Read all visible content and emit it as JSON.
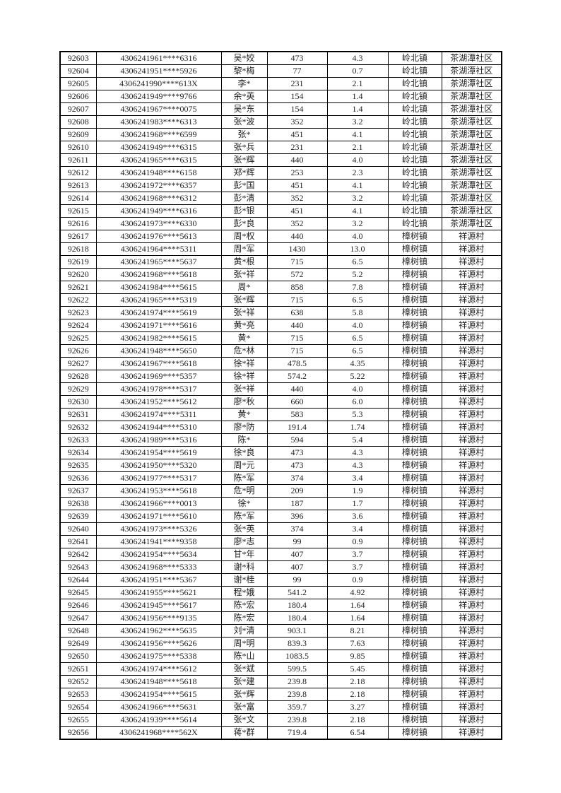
{
  "page": {
    "background_color": "#ffffff",
    "text_color": "#1f1f1f",
    "border_color": "#000000"
  },
  "table": {
    "rows": [
      [
        "92603",
        "4306241961****6316",
        "吴*姣",
        "473",
        "4.3",
        "岭北镇",
        "茶湖潭社区"
      ],
      [
        "92604",
        "4306241951****5926",
        "黎*梅",
        "77",
        "0.7",
        "岭北镇",
        "茶湖潭社区"
      ],
      [
        "92605",
        "4306241990****613X",
        "李*",
        "231",
        "2.1",
        "岭北镇",
        "茶湖潭社区"
      ],
      [
        "92606",
        "4306241949****9766",
        "余*英",
        "154",
        "1.4",
        "岭北镇",
        "茶湖潭社区"
      ],
      [
        "92607",
        "4306241967****0075",
        "吴*东",
        "154",
        "1.4",
        "岭北镇",
        "茶湖潭社区"
      ],
      [
        "92608",
        "4306241983****6313",
        "张*波",
        "352",
        "3.2",
        "岭北镇",
        "茶湖潭社区"
      ],
      [
        "92609",
        "4306241968****6599",
        "张*",
        "451",
        "4.1",
        "岭北镇",
        "茶湖潭社区"
      ],
      [
        "92610",
        "4306241949****6315",
        "张*兵",
        "231",
        "2.1",
        "岭北镇",
        "茶湖潭社区"
      ],
      [
        "92611",
        "4306241965****6315",
        "张*辉",
        "440",
        "4.0",
        "岭北镇",
        "茶湖潭社区"
      ],
      [
        "92612",
        "4306241948****6158",
        "郑*辉",
        "253",
        "2.3",
        "岭北镇",
        "茶湖潭社区"
      ],
      [
        "92613",
        "4306241972****6357",
        "彭*国",
        "451",
        "4.1",
        "岭北镇",
        "茶湖潭社区"
      ],
      [
        "92614",
        "4306241968****6312",
        "彭*清",
        "352",
        "3.2",
        "岭北镇",
        "茶湖潭社区"
      ],
      [
        "92615",
        "4306241949****6316",
        "彭*银",
        "451",
        "4.1",
        "岭北镇",
        "茶湖潭社区"
      ],
      [
        "92616",
        "4306241973****6330",
        "彭*良",
        "352",
        "3.2",
        "岭北镇",
        "茶湖潭社区"
      ],
      [
        "92617",
        "4306241976****5613",
        "周*权",
        "440",
        "4.0",
        "樟树镇",
        "祥源村"
      ],
      [
        "92618",
        "4306241964****5311",
        "周*军",
        "1430",
        "13.0",
        "樟树镇",
        "祥源村"
      ],
      [
        "92619",
        "4306241965****5637",
        "黄*根",
        "715",
        "6.5",
        "樟树镇",
        "祥源村"
      ],
      [
        "92620",
        "4306241968****5618",
        "张*祥",
        "572",
        "5.2",
        "樟树镇",
        "祥源村"
      ],
      [
        "92621",
        "4306241984****5615",
        "周*",
        "858",
        "7.8",
        "樟树镇",
        "祥源村"
      ],
      [
        "92622",
        "4306241965****5319",
        "张*辉",
        "715",
        "6.5",
        "樟树镇",
        "祥源村"
      ],
      [
        "92623",
        "4306241974****5619",
        "张*祥",
        "638",
        "5.8",
        "樟树镇",
        "祥源村"
      ],
      [
        "92624",
        "4306241971****5616",
        "黄*亮",
        "440",
        "4.0",
        "樟树镇",
        "祥源村"
      ],
      [
        "92625",
        "4306241982****5615",
        "黄*",
        "715",
        "6.5",
        "樟树镇",
        "祥源村"
      ],
      [
        "92626",
        "4306241948****5650",
        "危*林",
        "715",
        "6.5",
        "樟树镇",
        "祥源村"
      ],
      [
        "92627",
        "4306241967****5618",
        "徐*祥",
        "478.5",
        "4.35",
        "樟树镇",
        "祥源村"
      ],
      [
        "92628",
        "4306241969****5357",
        "徐*祥",
        "574.2",
        "5.22",
        "樟树镇",
        "祥源村"
      ],
      [
        "92629",
        "4306241978****5317",
        "张*祥",
        "440",
        "4.0",
        "樟树镇",
        "祥源村"
      ],
      [
        "92630",
        "4306241952****5612",
        "廖*秋",
        "660",
        "6.0",
        "樟树镇",
        "祥源村"
      ],
      [
        "92631",
        "4306241974****5311",
        "黄*",
        "583",
        "5.3",
        "樟树镇",
        "祥源村"
      ],
      [
        "92632",
        "4306241944****5310",
        "廖*防",
        "191.4",
        "1.74",
        "樟树镇",
        "祥源村"
      ],
      [
        "92633",
        "4306241989****5316",
        "陈*",
        "594",
        "5.4",
        "樟树镇",
        "祥源村"
      ],
      [
        "92634",
        "4306241954****5619",
        "徐*良",
        "473",
        "4.3",
        "樟树镇",
        "祥源村"
      ],
      [
        "92635",
        "4306241950****5320",
        "周*元",
        "473",
        "4.3",
        "樟树镇",
        "祥源村"
      ],
      [
        "92636",
        "4306241977****5317",
        "陈*军",
        "374",
        "3.4",
        "樟树镇",
        "祥源村"
      ],
      [
        "92637",
        "4306241953****5618",
        "危*明",
        "209",
        "1.9",
        "樟树镇",
        "祥源村"
      ],
      [
        "92638",
        "4306241966****0013",
        "徐*",
        "187",
        "1.7",
        "樟树镇",
        "祥源村"
      ],
      [
        "92639",
        "4306241971****5610",
        "陈*军",
        "396",
        "3.6",
        "樟树镇",
        "祥源村"
      ],
      [
        "92640",
        "4306241973****5326",
        "张*英",
        "374",
        "3.4",
        "樟树镇",
        "祥源村"
      ],
      [
        "92641",
        "4306241941****9358",
        "廖*志",
        "99",
        "0.9",
        "樟树镇",
        "祥源村"
      ],
      [
        "92642",
        "4306241954****5634",
        "甘*年",
        "407",
        "3.7",
        "樟树镇",
        "祥源村"
      ],
      [
        "92643",
        "4306241968****5333",
        "谢*科",
        "407",
        "3.7",
        "樟树镇",
        "祥源村"
      ],
      [
        "92644",
        "4306241951****5367",
        "谢*桂",
        "99",
        "0.9",
        "樟树镇",
        "祥源村"
      ],
      [
        "92645",
        "4306241955****5621",
        "程*娥",
        "541.2",
        "4.92",
        "樟树镇",
        "祥源村"
      ],
      [
        "92646",
        "4306241945****5617",
        "陈*宏",
        "180.4",
        "1.64",
        "樟树镇",
        "祥源村"
      ],
      [
        "92647",
        "4306241956****9135",
        "陈*宏",
        "180.4",
        "1.64",
        "樟树镇",
        "祥源村"
      ],
      [
        "92648",
        "4306241962****5635",
        "刘*清",
        "903.1",
        "8.21",
        "樟树镇",
        "祥源村"
      ],
      [
        "92649",
        "4306241956****5626",
        "周*明",
        "839.3",
        "7.63",
        "樟树镇",
        "祥源村"
      ],
      [
        "92650",
        "4306241975****5338",
        "陈*山",
        "1083.5",
        "9.85",
        "樟树镇",
        "祥源村"
      ],
      [
        "92651",
        "4306241974****5612",
        "张*斌",
        "599.5",
        "5.45",
        "樟树镇",
        "祥源村"
      ],
      [
        "92652",
        "4306241948****5618",
        "张*建",
        "239.8",
        "2.18",
        "樟树镇",
        "祥源村"
      ],
      [
        "92653",
        "4306241954****5615",
        "张*辉",
        "239.8",
        "2.18",
        "樟树镇",
        "祥源村"
      ],
      [
        "92654",
        "4306241966****5631",
        "张*富",
        "359.7",
        "3.27",
        "樟树镇",
        "祥源村"
      ],
      [
        "92655",
        "4306241939****5614",
        "张*文",
        "239.8",
        "2.18",
        "樟树镇",
        "祥源村"
      ],
      [
        "92656",
        "4306241968****562X",
        "蒋*群",
        "719.4",
        "6.54",
        "樟树镇",
        "祥源村"
      ]
    ]
  }
}
